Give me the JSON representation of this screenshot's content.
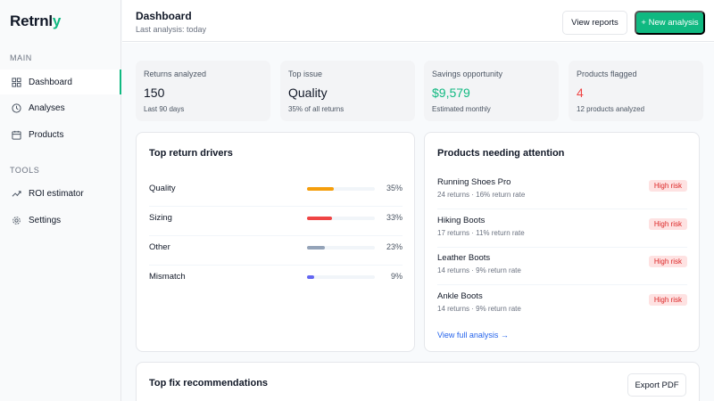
{
  "app": {
    "logo_main": "Retrnl",
    "logo_accent": "y"
  },
  "sidebar": {
    "sections": [
      {
        "label": "MAIN",
        "items": [
          {
            "label": "Dashboard",
            "icon": "dashboard-grid-icon",
            "active": true
          },
          {
            "label": "Analyses",
            "icon": "clock-icon"
          },
          {
            "label": "Products",
            "icon": "calendar-icon"
          }
        ]
      },
      {
        "label": "TOOLS",
        "items": [
          {
            "label": "ROI estimator",
            "icon": "trend-icon"
          },
          {
            "label": "Settings",
            "icon": "gear-icon"
          }
        ]
      }
    ]
  },
  "header": {
    "title": "Dashboard",
    "subtitle": "Last analysis: today",
    "view_reports": "View reports",
    "new_analysis": "+ New analysis"
  },
  "stats": [
    {
      "label": "Returns analyzed",
      "value": "150",
      "sub": "Last 90 days",
      "color": "#111827"
    },
    {
      "label": "Top issue",
      "value": "Quality",
      "sub": "35% of all returns",
      "color": "#111827"
    },
    {
      "label": "Savings opportunity",
      "value": "$9,579",
      "sub": "Estimated monthly",
      "color": "#10b981"
    },
    {
      "label": "Products flagged",
      "value": "4",
      "sub": "12 products analyzed",
      "color": "#ef4444"
    }
  ],
  "drivers": {
    "title": "Top return drivers",
    "items": [
      {
        "name": "Quality",
        "pct_label": "35%",
        "fraction": 0.39,
        "color": "#f59e0b"
      },
      {
        "name": "Sizing",
        "pct_label": "33%",
        "fraction": 0.37,
        "color": "#ef4444"
      },
      {
        "name": "Other",
        "pct_label": "23%",
        "fraction": 0.26,
        "color": "#94a3b8"
      },
      {
        "name": "Mismatch",
        "pct_label": "9%",
        "fraction": 0.1,
        "color": "#6366f1"
      }
    ]
  },
  "attention": {
    "title": "Products needing attention",
    "items": [
      {
        "name": "Running Shoes Pro",
        "meta": "24 returns · 16% return rate",
        "badge": "High risk"
      },
      {
        "name": "Hiking Boots",
        "meta": "17 returns · 11% return rate",
        "badge": "High risk"
      },
      {
        "name": "Leather Boots",
        "meta": "14 returns · 9% return rate",
        "badge": "High risk"
      },
      {
        "name": "Ankle Boots",
        "meta": "14 returns · 9% return rate",
        "badge": "High risk"
      }
    ],
    "link": "View full analysis →"
  },
  "recommendations": {
    "title": "Top fix recommendations",
    "export": "Export PDF"
  }
}
